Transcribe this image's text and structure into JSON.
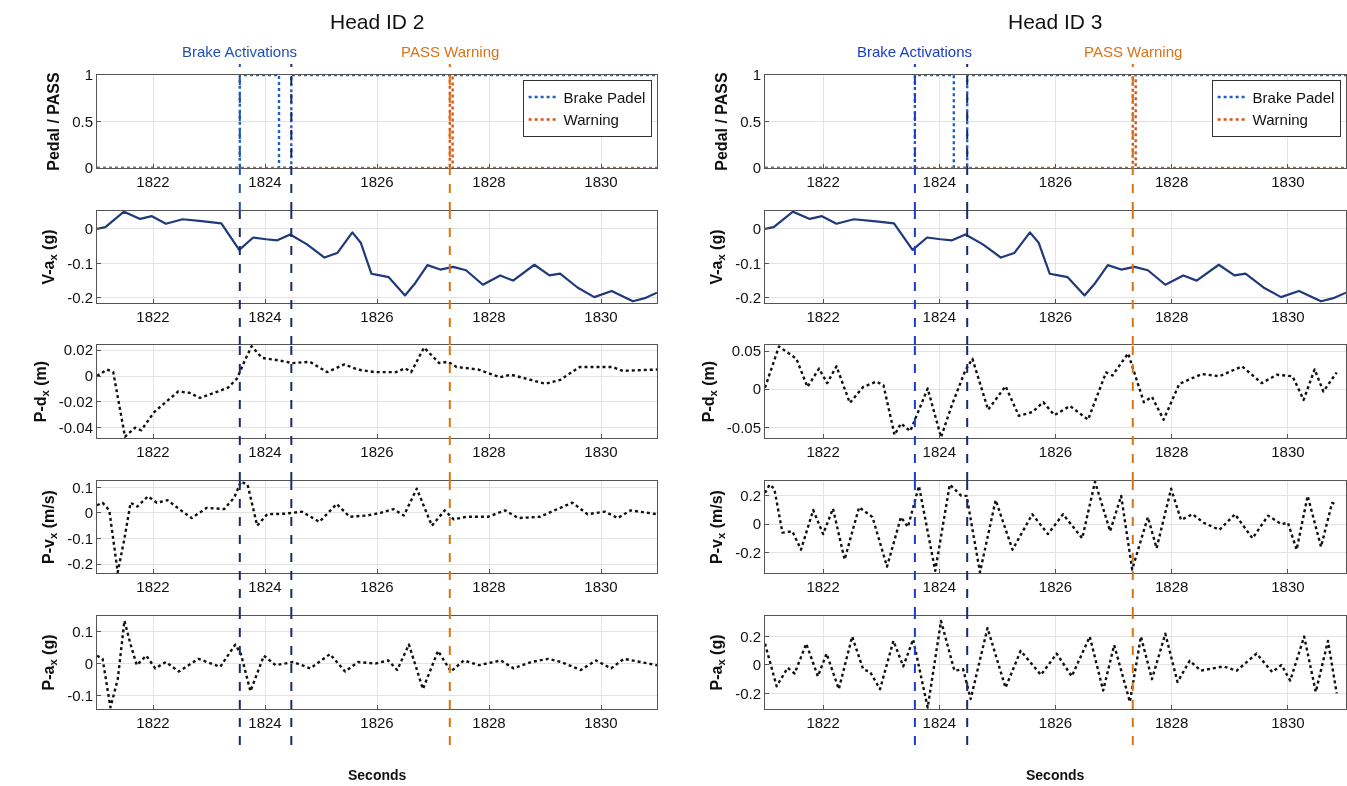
{
  "chart_data": [
    {
      "type": "step",
      "title": "Head ID 2",
      "ylabel": "Pedal / PASS",
      "xlim": [
        1821,
        1831
      ],
      "xticks": [
        1822,
        1824,
        1826,
        1828,
        1830
      ],
      "ylim": [
        0,
        1
      ],
      "yticks": [
        0,
        0.5,
        1
      ],
      "grid": true,
      "legend": "top right",
      "line_style": "dotted",
      "series": [
        {
          "name": "Brake Padel",
          "color": "#1f5fbf",
          "x": [
            1821,
            1823.55,
            1824.25,
            1824.47,
            1831
          ],
          "values": [
            0,
            1,
            0,
            1,
            1
          ]
        },
        {
          "name": "Warning",
          "color": "#d95319",
          "x": [
            1821,
            1827.3,
            1827.35,
            1831
          ],
          "values": [
            0,
            1,
            0,
            0
          ]
        }
      ],
      "ref_lines": [
        {
          "axis": "x",
          "value": 1823.55,
          "label": "Brake Activations",
          "color": "#2050b0",
          "line_style": "dashed"
        },
        {
          "axis": "x",
          "value": 1824.47,
          "label": null,
          "color": "#1a2a6c",
          "line_style": "dashed"
        },
        {
          "axis": "x",
          "value": 1827.3,
          "label": "PASS Warning",
          "color": "#d9731a",
          "line_style": "dashed"
        }
      ]
    },
    {
      "type": "line",
      "ylabel": "V-a$_{x}$ (g)",
      "xlim": [
        1821,
        1831
      ],
      "xticks": [
        1822,
        1824,
        1826,
        1828,
        1830
      ],
      "ylim": [
        -0.215,
        0.052
      ],
      "yticks": [
        -0.2,
        -0.1,
        0
      ],
      "grid": true,
      "line_style": "solid",
      "color": "#1f3a7a",
      "x": [
        1821,
        1821.15,
        1821.48,
        1821.77,
        1821.98,
        1822.23,
        1822.53,
        1822.91,
        1823.22,
        1823.54,
        1823.79,
        1824.02,
        1824.22,
        1824.45,
        1824.75,
        1825.06,
        1825.29,
        1825.56,
        1825.71,
        1825.9,
        1826.05,
        1826.21,
        1826.5,
        1826.67,
        1826.9,
        1827.13,
        1827.36,
        1827.59,
        1827.89,
        1828.2,
        1828.43,
        1828.81,
        1829.08,
        1829.27,
        1829.58,
        1829.88,
        1830.19,
        1830.57,
        1830.8,
        1831
      ],
      "values": [
        0,
        0.005,
        0.05,
        0.029,
        0.037,
        0.015,
        0.028,
        0.022,
        0.016,
        -0.061,
        -0.025,
        -0.03,
        -0.033,
        -0.016,
        -0.045,
        -0.083,
        -0.07,
        -0.01,
        -0.04,
        -0.13,
        -0.135,
        -0.14,
        -0.193,
        -0.16,
        -0.105,
        -0.118,
        -0.11,
        -0.12,
        -0.162,
        -0.135,
        -0.15,
        -0.104,
        -0.135,
        -0.13,
        -0.17,
        -0.198,
        -0.18,
        -0.21,
        -0.2,
        -0.185
      ],
      "ref_lines": [
        {
          "axis": "x",
          "value": 1823.55,
          "color": "#1a2a6c",
          "line_style": "dashed"
        },
        {
          "axis": "x",
          "value": 1824.47,
          "color": "#1a2a6c",
          "line_style": "dashed"
        },
        {
          "axis": "x",
          "value": 1827.3,
          "color": "#d9731a",
          "line_style": "dashed"
        }
      ]
    },
    {
      "type": "line",
      "ylabel": "P-d$_{x}$ (m)",
      "xlim": [
        1821,
        1831
      ],
      "xticks": [
        1822,
        1824,
        1826,
        1828,
        1830
      ],
      "ylim": [
        -0.048,
        0.024
      ],
      "yticks": [
        -0.04,
        -0.02,
        0,
        0.02
      ],
      "grid": true,
      "line_style": "dotted",
      "color": "#111111",
      "x": [
        1821,
        1821.18,
        1821.29,
        1821.5,
        1821.68,
        1821.79,
        1822.02,
        1822.18,
        1822.45,
        1822.65,
        1822.84,
        1823.1,
        1823.34,
        1823.5,
        1823.64,
        1823.76,
        1823.95,
        1824.26,
        1824.49,
        1824.8,
        1825.11,
        1825.42,
        1825.65,
        1825.96,
        1826.34,
        1826.5,
        1826.61,
        1826.84,
        1827.11,
        1827.27,
        1827.42,
        1827.81,
        1828.19,
        1828.39,
        1828.66,
        1829,
        1829.27,
        1829.62,
        1830.2,
        1830.39,
        1831
      ],
      "values": [
        0,
        0.005,
        0.003,
        -0.047,
        -0.04,
        -0.042,
        -0.028,
        -0.022,
        -0.012,
        -0.013,
        -0.017,
        -0.013,
        -0.009,
        -0.002,
        0.012,
        0.023,
        0.014,
        0.012,
        0.01,
        0.011,
        0.003,
        0.009,
        0.005,
        0.003,
        0.003,
        0.006,
        0.003,
        0.022,
        0.01,
        0.011,
        0.007,
        0.005,
        -0.001,
        0.001,
        -0.002,
        -0.006,
        -0.003,
        0.007,
        0.007,
        0.004,
        0.005
      ],
      "ref_lines": [
        {
          "axis": "x",
          "value": 1823.55,
          "color": "#1a2a6c",
          "line_style": "dashed"
        },
        {
          "axis": "x",
          "value": 1824.47,
          "color": "#1a2a6c",
          "line_style": "dashed"
        },
        {
          "axis": "x",
          "value": 1827.3,
          "color": "#d9731a",
          "line_style": "dashed"
        }
      ]
    },
    {
      "type": "line",
      "ylabel": "P-v$_{x}$ (m/s)",
      "xlim": [
        1821,
        1831
      ],
      "xticks": [
        1822,
        1824,
        1826,
        1828,
        1830
      ],
      "ylim": [
        -0.235,
        0.125
      ],
      "yticks": [
        -0.2,
        -0.1,
        0,
        0.1
      ],
      "grid": true,
      "line_style": "dotted",
      "color": "#111111",
      "x": [
        1821,
        1821.1,
        1821.22,
        1821.37,
        1821.49,
        1821.6,
        1821.72,
        1821.91,
        1822.07,
        1822.26,
        1822.5,
        1822.69,
        1822.96,
        1823.27,
        1823.45,
        1823.57,
        1823.69,
        1823.86,
        1824.04,
        1824.35,
        1824.66,
        1824.97,
        1825.28,
        1825.51,
        1825.82,
        1826.06,
        1826.29,
        1826.48,
        1826.71,
        1826.98,
        1827.21,
        1827.37,
        1827.6,
        1827.98,
        1828.29,
        1828.52,
        1828.91,
        1829.22,
        1829.49,
        1829.76,
        1830.07,
        1830.3,
        1830.53,
        1831
      ],
      "values": [
        0.03,
        0.04,
        0.01,
        -0.232,
        -0.1,
        0.04,
        0.025,
        0.065,
        0.04,
        0.05,
        0.01,
        -0.02,
        0.02,
        0.015,
        0.06,
        0.123,
        0.11,
        -0.05,
        -0.005,
        -0.003,
        0.005,
        -0.035,
        0.035,
        -0.015,
        -0.01,
        0,
        0.015,
        -0.01,
        0.095,
        -0.05,
        0.01,
        -0.025,
        -0.015,
        -0.015,
        0.01,
        -0.02,
        -0.015,
        0.015,
        0.04,
        -0.005,
        0.005,
        -0.02,
        0.01,
        -0.005
      ],
      "ref_lines": [
        {
          "axis": "x",
          "value": 1823.55,
          "color": "#1a2a6c",
          "line_style": "dashed"
        },
        {
          "axis": "x",
          "value": 1824.47,
          "color": "#1a2a6c",
          "line_style": "dashed"
        },
        {
          "axis": "x",
          "value": 1827.3,
          "color": "#d9731a",
          "line_style": "dashed"
        }
      ]
    },
    {
      "type": "line",
      "ylabel": "P-a$_{x}$ (g)",
      "xlabel": "Seconds",
      "xlim": [
        1821,
        1831
      ],
      "xticks": [
        1822,
        1824,
        1826,
        1828,
        1830
      ],
      "ylim": [
        -0.143,
        0.15
      ],
      "yticks": [
        -0.1,
        0,
        0.1
      ],
      "grid": true,
      "line_style": "dotted",
      "color": "#111111",
      "x": [
        1821,
        1821.1,
        1821.24,
        1821.37,
        1821.49,
        1821.6,
        1821.71,
        1821.88,
        1822.04,
        1822.23,
        1822.46,
        1822.81,
        1823.2,
        1823.47,
        1823.57,
        1823.74,
        1823.98,
        1824.19,
        1824.5,
        1824.81,
        1825.16,
        1825.43,
        1825.66,
        1825.97,
        1826.2,
        1826.36,
        1826.57,
        1826.82,
        1827.09,
        1827.32,
        1827.55,
        1827.82,
        1828.21,
        1828.44,
        1828.75,
        1829.06,
        1829.29,
        1829.64,
        1829.91,
        1830.18,
        1830.41,
        1831
      ],
      "values": [
        0.025,
        0.015,
        -0.138,
        -0.05,
        0.135,
        0.06,
        -0.005,
        0.025,
        -0.015,
        0.005,
        -0.025,
        0.015,
        -0.01,
        0.06,
        0.03,
        -0.087,
        0.025,
        -0.005,
        0.005,
        -0.015,
        0.03,
        -0.025,
        0.005,
        0,
        0.01,
        -0.02,
        0.06,
        -0.08,
        0.04,
        -0.025,
        0.01,
        -0.005,
        0.01,
        -0.015,
        0.005,
        0.015,
        0.005,
        -0.02,
        0.01,
        -0.015,
        0.015,
        -0.005
      ],
      "ref_lines": [
        {
          "axis": "x",
          "value": 1823.55,
          "color": "#1a2a6c",
          "line_style": "dashed"
        },
        {
          "axis": "x",
          "value": 1824.47,
          "color": "#1a2a6c",
          "line_style": "dashed"
        },
        {
          "axis": "x",
          "value": 1827.3,
          "color": "#d9731a",
          "line_style": "dashed"
        }
      ]
    },
    {
      "type": "step",
      "title": "Head ID 3",
      "ylabel": "Pedal / PASS",
      "xlim": [
        1821,
        1831
      ],
      "xticks": [
        1822,
        1824,
        1826,
        1828,
        1830
      ],
      "ylim": [
        0,
        1
      ],
      "yticks": [
        0,
        0.5,
        1
      ],
      "grid": true,
      "legend": "top right",
      "line_style": "dotted",
      "series": [
        {
          "name": "Brake Padel",
          "color": "#1f5fbf",
          "x": [
            1821,
            1823.58,
            1824.25,
            1824.48,
            1831
          ],
          "values": [
            0,
            1,
            0,
            1,
            1
          ]
        },
        {
          "name": "Warning",
          "color": "#d95319",
          "x": [
            1821,
            1827.33,
            1827.38,
            1831
          ],
          "values": [
            0,
            1,
            0,
            0
          ]
        }
      ],
      "ref_lines": [
        {
          "axis": "x",
          "value": 1823.58,
          "label": "Brake Activations",
          "color": "#1a3cc8",
          "line_style": "dashed"
        },
        {
          "axis": "x",
          "value": 1824.48,
          "label": null,
          "color": "#1a2a6c",
          "line_style": "dashed"
        },
        {
          "axis": "x",
          "value": 1827.33,
          "label": "PASS Warning",
          "color": "#d9731a",
          "line_style": "dashed"
        }
      ]
    },
    {
      "type": "line",
      "ylabel": "V-a$_{x}$ (g)",
      "xlim": [
        1821,
        1831
      ],
      "xticks": [
        1822,
        1824,
        1826,
        1828,
        1830
      ],
      "ylim": [
        -0.215,
        0.052
      ],
      "yticks": [
        -0.2,
        -0.1,
        0
      ],
      "grid": true,
      "line_style": "solid",
      "color": "#1f3a7a",
      "x": [
        1821,
        1821.15,
        1821.48,
        1821.77,
        1821.98,
        1822.23,
        1822.53,
        1822.91,
        1823.22,
        1823.54,
        1823.79,
        1824.02,
        1824.22,
        1824.45,
        1824.75,
        1825.06,
        1825.29,
        1825.56,
        1825.71,
        1825.9,
        1826.05,
        1826.21,
        1826.5,
        1826.67,
        1826.9,
        1827.13,
        1827.36,
        1827.59,
        1827.89,
        1828.2,
        1828.43,
        1828.81,
        1829.08,
        1829.27,
        1829.58,
        1829.88,
        1830.19,
        1830.57,
        1830.8,
        1831
      ],
      "values": [
        0,
        0.005,
        0.05,
        0.029,
        0.037,
        0.015,
        0.028,
        0.022,
        0.016,
        -0.061,
        -0.025,
        -0.03,
        -0.033,
        -0.016,
        -0.045,
        -0.083,
        -0.07,
        -0.01,
        -0.04,
        -0.13,
        -0.135,
        -0.14,
        -0.193,
        -0.16,
        -0.105,
        -0.118,
        -0.11,
        -0.12,
        -0.162,
        -0.135,
        -0.15,
        -0.104,
        -0.135,
        -0.13,
        -0.17,
        -0.198,
        -0.18,
        -0.21,
        -0.2,
        -0.185
      ],
      "ref_lines": [
        {
          "axis": "x",
          "value": 1823.58,
          "color": "#1a3cc8",
          "line_style": "dashed"
        },
        {
          "axis": "x",
          "value": 1824.48,
          "color": "#1a2a6c",
          "line_style": "dashed"
        },
        {
          "axis": "x",
          "value": 1827.33,
          "color": "#d9731a",
          "line_style": "dashed"
        }
      ]
    },
    {
      "type": "line",
      "ylabel": "P-d$_{x}$ (m)",
      "xlim": [
        1821,
        1831
      ],
      "xticks": [
        1822,
        1824,
        1826,
        1828,
        1830
      ],
      "ylim": [
        -0.064,
        0.058
      ],
      "yticks": [
        -0.05,
        0,
        0.05
      ],
      "grid": true,
      "line_style": "dotted",
      "color": "#111111",
      "x": [
        1821,
        1821.24,
        1821.54,
        1821.73,
        1821.93,
        1822.07,
        1822.23,
        1822.46,
        1822.69,
        1822.92,
        1823.04,
        1823.23,
        1823.34,
        1823.5,
        1823.8,
        1824.03,
        1824.22,
        1824.45,
        1824.57,
        1824.84,
        1825.14,
        1825.37,
        1825.6,
        1825.79,
        1825.98,
        1826.25,
        1826.56,
        1826.87,
        1826.98,
        1827.25,
        1827.52,
        1827.66,
        1827.86,
        1828.13,
        1828.52,
        1828.82,
        1829.21,
        1829.55,
        1829.81,
        1830.08,
        1830.27,
        1830.46,
        1830.61,
        1830.84
      ],
      "values": [
        0.002,
        0.056,
        0.04,
        0.003,
        0.027,
        0.008,
        0.03,
        -0.018,
        0.003,
        0.01,
        0.005,
        -0.06,
        -0.045,
        -0.055,
        0.001,
        -0.063,
        -0.02,
        0.025,
        0.04,
        -0.027,
        0.004,
        -0.035,
        -0.03,
        -0.017,
        -0.034,
        -0.022,
        -0.04,
        0.022,
        0.018,
        0.047,
        -0.017,
        -0.01,
        -0.04,
        0.007,
        0.02,
        0.017,
        0.03,
        0.008,
        0.019,
        0.017,
        -0.014,
        0.026,
        -0.003,
        0.022
      ],
      "ref_lines": [
        {
          "axis": "x",
          "value": 1823.58,
          "color": "#1a3cc8",
          "line_style": "dashed"
        },
        {
          "axis": "x",
          "value": 1824.48,
          "color": "#1a2a6c",
          "line_style": "dashed"
        },
        {
          "axis": "x",
          "value": 1827.33,
          "color": "#d9731a",
          "line_style": "dashed"
        }
      ]
    },
    {
      "type": "line",
      "ylabel": "P-v$_{x}$ (m/s)",
      "xlim": [
        1821,
        1831
      ],
      "xticks": [
        1822,
        1824,
        1826,
        1828,
        1830
      ],
      "ylim": [
        -0.345,
        0.305
      ],
      "yticks": [
        -0.2,
        0,
        0.2
      ],
      "grid": true,
      "line_style": "dotted",
      "color": "#111111",
      "x": [
        1821,
        1821.08,
        1821.16,
        1821.3,
        1821.47,
        1821.62,
        1821.83,
        1822,
        1822.17,
        1822.37,
        1822.62,
        1822.85,
        1823.1,
        1823.34,
        1823.46,
        1823.65,
        1823.93,
        1824.18,
        1824.38,
        1824.47,
        1824.7,
        1824.97,
        1825.26,
        1825.6,
        1825.87,
        1826.13,
        1826.46,
        1826.68,
        1826.94,
        1827.13,
        1827.32,
        1827.59,
        1827.74,
        1827.99,
        1828.16,
        1828.36,
        1828.55,
        1828.82,
        1829.09,
        1829.39,
        1829.66,
        1829.89,
        1830,
        1830.15,
        1830.34,
        1830.57,
        1830.76,
        1830.85
      ],
      "values": [
        0.22,
        0.28,
        0.25,
        -0.06,
        -0.05,
        -0.18,
        0.1,
        -0.07,
        0.11,
        -0.25,
        0.12,
        0.05,
        -0.3,
        0.05,
        -0.02,
        0.27,
        -0.33,
        0.28,
        0.2,
        0.2,
        -0.34,
        0.17,
        -0.18,
        0.07,
        -0.07,
        0.07,
        -0.1,
        0.3,
        -0.05,
        0.2,
        -0.32,
        0.05,
        -0.17,
        0.25,
        0.03,
        0.07,
        0.01,
        -0.04,
        0.07,
        -0.1,
        0.06,
        0,
        0.01,
        -0.18,
        0.2,
        -0.16,
        0.15,
        0.14
      ],
      "ref_lines": [
        {
          "axis": "x",
          "value": 1823.58,
          "color": "#1a3cc8",
          "line_style": "dashed"
        },
        {
          "axis": "x",
          "value": 1824.48,
          "color": "#1a2a6c",
          "line_style": "dashed"
        },
        {
          "axis": "x",
          "value": 1827.33,
          "color": "#d9731a",
          "line_style": "dashed"
        }
      ]
    },
    {
      "type": "line",
      "ylabel": "P-a$_{x}$ (g)",
      "xlabel": "Seconds",
      "xlim": [
        1821,
        1831
      ],
      "xticks": [
        1822,
        1824,
        1826,
        1828,
        1830
      ],
      "ylim": [
        -0.31,
        0.345
      ],
      "yticks": [
        -0.2,
        0,
        0.2
      ],
      "grid": true,
      "line_style": "dotted",
      "color": "#111111",
      "x": [
        1821,
        1821.2,
        1821.39,
        1821.51,
        1821.71,
        1821.91,
        1822.06,
        1822.27,
        1822.5,
        1822.69,
        1822.81,
        1822.98,
        1823.21,
        1823.38,
        1823.55,
        1823.8,
        1824.03,
        1824.26,
        1824.41,
        1824.54,
        1824.83,
        1825.14,
        1825.4,
        1825.75,
        1826.02,
        1826.28,
        1826.59,
        1826.82,
        1827.01,
        1827.28,
        1827.47,
        1827.66,
        1827.89,
        1828.1,
        1828.31,
        1828.5,
        1828.89,
        1829.12,
        1829.46,
        1829.73,
        1829.89,
        1830.04,
        1830.28,
        1830.48,
        1830.69,
        1830.84
      ],
      "values": [
        0.15,
        -0.15,
        -0.02,
        -0.06,
        0.15,
        -0.08,
        0.08,
        -0.17,
        0.2,
        -0.03,
        -0.05,
        -0.17,
        0.17,
        -0.01,
        0.18,
        -0.3,
        0.31,
        -0.04,
        -0.03,
        -0.24,
        0.26,
        -0.16,
        0.1,
        -0.07,
        0.08,
        -0.08,
        0.2,
        -0.18,
        0.14,
        -0.26,
        0.2,
        -0.1,
        0.22,
        -0.12,
        0.03,
        -0.04,
        -0.01,
        -0.04,
        0.08,
        -0.05,
        0,
        -0.11,
        0.2,
        -0.19,
        0.17,
        -0.2
      ],
      "ref_lines": [
        {
          "axis": "x",
          "value": 1823.58,
          "color": "#1a3cc8",
          "line_style": "dashed"
        },
        {
          "axis": "x",
          "value": 1824.48,
          "color": "#1a2a6c",
          "line_style": "dashed"
        },
        {
          "axis": "x",
          "value": 1827.33,
          "color": "#d9731a",
          "line_style": "dashed"
        }
      ]
    }
  ]
}
